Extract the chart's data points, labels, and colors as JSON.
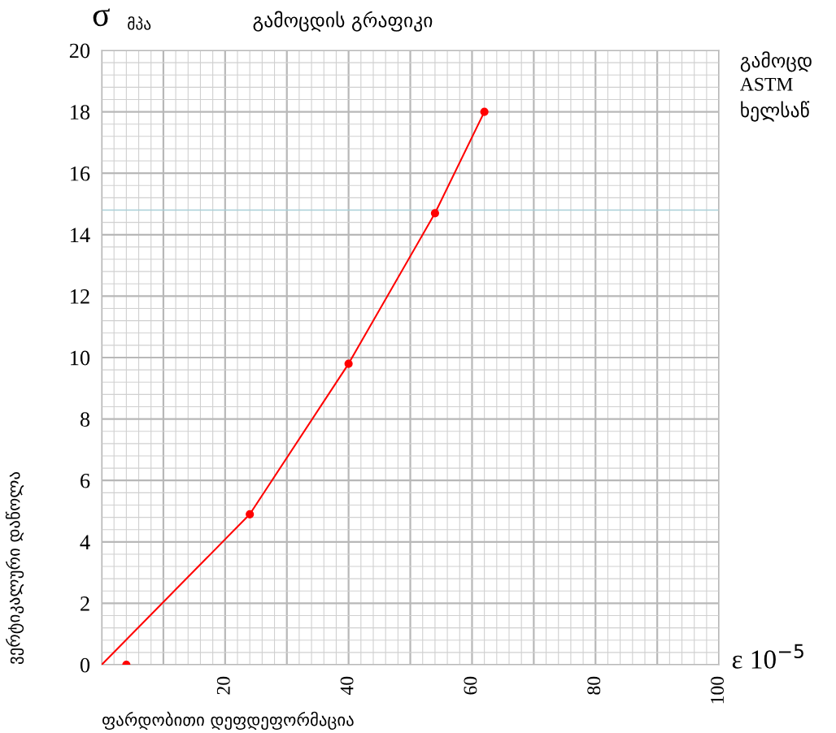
{
  "chart_data": {
    "type": "line",
    "title": "გამოცდის გრაფიკი",
    "xlabel": "ფარდობითი დეფდეფორმაცია",
    "ylabel": "ვერტიკალური დაწოლა",
    "annotations": [
      "σ",
      "მპა",
      "ε 10$^{−5}$",
      "გამოცდ\nASTM\nხელსაწ"
    ],
    "series": [
      {
        "color": "#ff0000",
        "marker": "none",
        "x": [
          0,
          24,
          40,
          54,
          62
        ],
        "values": [
          0,
          4.9,
          9.8,
          14.7,
          18
        ]
      },
      {
        "type": "scatter",
        "color": "#ff0000",
        "marker": "circle",
        "x": [
          4,
          24,
          40,
          54,
          62
        ],
        "values": [
          0,
          4.9,
          9.8,
          14.7,
          18
        ]
      }
    ],
    "xlim": [
      0,
      100
    ],
    "ylim": [
      0,
      20
    ],
    "xticks": [
      {
        "value": 0,
        "label": null
      },
      {
        "value": 10,
        "label": null
      },
      20,
      {
        "value": 30,
        "label": null
      },
      40,
      {
        "value": 50,
        "label": null
      },
      60,
      {
        "value": 70,
        "label": null
      },
      80,
      {
        "value": 90,
        "label": null
      },
      100
    ],
    "yticks": [
      0,
      2,
      4,
      6,
      8,
      10,
      12,
      14,
      16,
      18,
      20
    ],
    "ref_lines": [
      {
        "axis": "y",
        "value": 14.8,
        "label": null,
        "color": "#a8d0d8"
      }
    ],
    "grid": true,
    "legend": false
  }
}
